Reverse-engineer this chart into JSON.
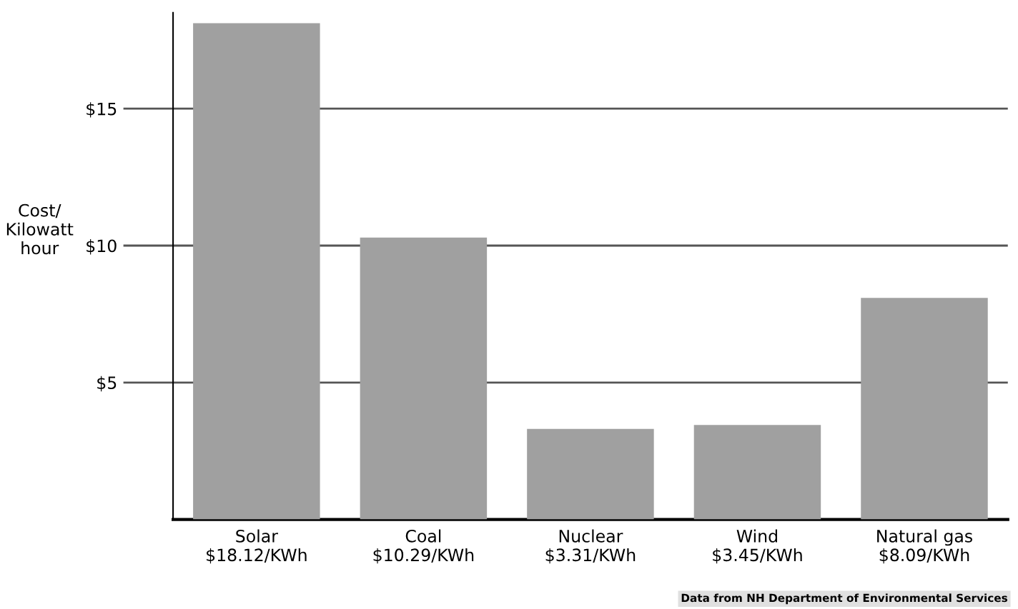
{
  "chart_data": {
    "type": "bar",
    "ylabel": "Cost/\nKilowatt\nhour",
    "categories": [
      "Solar\n$18.12/KWh",
      "Coal\n$10.29/KWh",
      "Nuclear\n$3.31/KWh",
      "Wind\n$3.45/KWh",
      "Natural gas\n$8.09/KWh"
    ],
    "values": [
      18.12,
      10.29,
      3.31,
      3.45,
      8.09
    ],
    "color": "#a0a0a0",
    "ylim": [
      0,
      18.5
    ],
    "yticks": [
      {
        "value": 5,
        "label": "$5"
      },
      {
        "value": 10,
        "label": "$10"
      },
      {
        "value": 15,
        "label": "$15"
      }
    ],
    "grid": "y",
    "annotations": [
      "Data from NH Department of Environmental Services"
    ]
  }
}
